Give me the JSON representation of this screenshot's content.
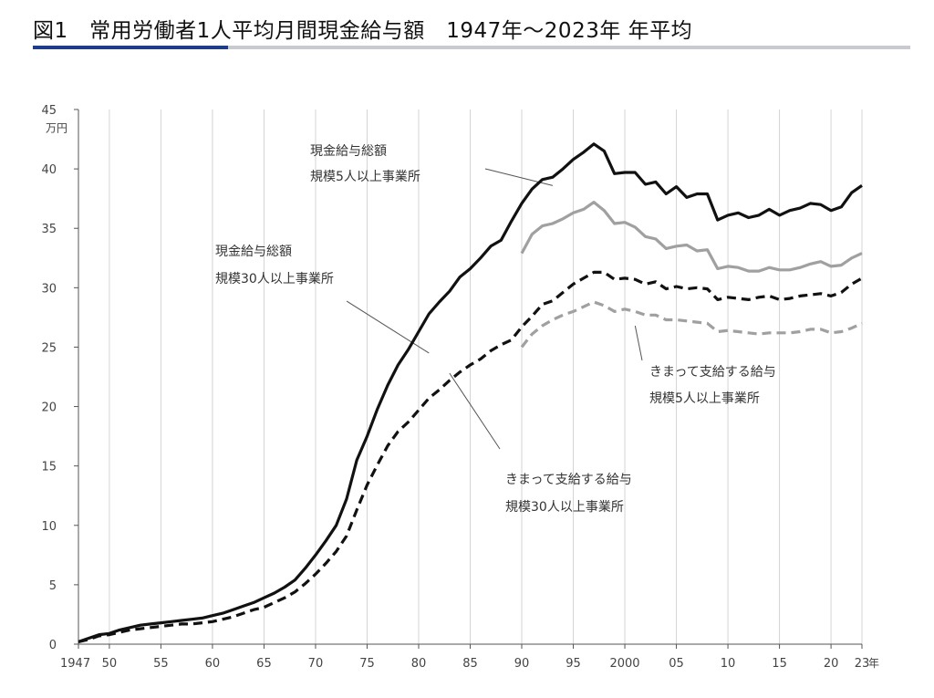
{
  "title": "図1　常用労働者1人平均月間現金給与額　1947年～2023年 年平均",
  "chart_data": {
    "type": "line",
    "y_unit": "万円",
    "x_unit": "年",
    "xlim": [
      1947,
      2023
    ],
    "ylim": [
      0,
      45
    ],
    "y_ticks": [
      0,
      5,
      10,
      15,
      20,
      25,
      30,
      35,
      40,
      45
    ],
    "x_ticks": [
      {
        "x": 1947,
        "label": "1947"
      },
      {
        "x": 1950,
        "label": "50"
      },
      {
        "x": 1955,
        "label": "55"
      },
      {
        "x": 1960,
        "label": "60"
      },
      {
        "x": 1965,
        "label": "65"
      },
      {
        "x": 1970,
        "label": "70"
      },
      {
        "x": 1975,
        "label": "75"
      },
      {
        "x": 1980,
        "label": "80"
      },
      {
        "x": 1985,
        "label": "85"
      },
      {
        "x": 1990,
        "label": "90"
      },
      {
        "x": 1995,
        "label": "95"
      },
      {
        "x": 2000,
        "label": "2000"
      },
      {
        "x": 2005,
        "label": "05"
      },
      {
        "x": 2010,
        "label": "10"
      },
      {
        "x": 2015,
        "label": "15"
      },
      {
        "x": 2020,
        "label": "20"
      },
      {
        "x": 2023,
        "label": "23"
      }
    ],
    "grid": "vertical",
    "series": [
      {
        "id": "total30",
        "color": "#111111",
        "dashed": false,
        "x": [
          1947,
          1948,
          1949,
          1950,
          1951,
          1952,
          1953,
          1954,
          1955,
          1956,
          1957,
          1958,
          1959,
          1960,
          1961,
          1962,
          1963,
          1964,
          1965,
          1966,
          1967,
          1968,
          1969,
          1970,
          1971,
          1972,
          1973,
          1974,
          1975,
          1976,
          1977,
          1978,
          1979,
          1980,
          1981,
          1982,
          1983,
          1984,
          1985,
          1986,
          1987,
          1988,
          1989,
          1990,
          1991,
          1992,
          1993,
          1994,
          1995,
          1996,
          1997,
          1998,
          1999,
          2000,
          2001,
          2002,
          2003,
          2004,
          2005,
          2006,
          2007,
          2008,
          2009,
          2010,
          2011,
          2012,
          2013,
          2014,
          2015,
          2016,
          2017,
          2018,
          2019,
          2020,
          2021,
          2022,
          2023
        ],
        "y": [
          0.2,
          0.5,
          0.8,
          0.9,
          1.2,
          1.4,
          1.6,
          1.7,
          1.8,
          1.9,
          2.0,
          2.1,
          2.2,
          2.4,
          2.6,
          2.9,
          3.2,
          3.5,
          3.9,
          4.3,
          4.8,
          5.4,
          6.4,
          7.5,
          8.7,
          10.0,
          12.2,
          15.5,
          17.5,
          19.8,
          21.8,
          23.5,
          24.8,
          26.3,
          27.8,
          28.8,
          29.7,
          30.9,
          31.6,
          32.5,
          33.5,
          34.0,
          35.6,
          37.1,
          38.3,
          39.1,
          39.3,
          40.0,
          40.8,
          41.4,
          42.1,
          41.5,
          39.6,
          39.7,
          39.7,
          38.7,
          38.9,
          37.9,
          38.5,
          37.6,
          37.9,
          37.9,
          35.7,
          36.1,
          36.3,
          35.9,
          36.1,
          36.6,
          36.1,
          36.5,
          36.7,
          37.1,
          37.0,
          36.5,
          36.8,
          38.0,
          38.6
        ]
      },
      {
        "id": "contract30",
        "color": "#111111",
        "dashed": true,
        "x": [
          1947,
          1948,
          1949,
          1950,
          1951,
          1952,
          1953,
          1954,
          1955,
          1956,
          1957,
          1958,
          1959,
          1960,
          1961,
          1962,
          1963,
          1964,
          1965,
          1966,
          1967,
          1968,
          1969,
          1970,
          1971,
          1972,
          1973,
          1974,
          1975,
          1976,
          1977,
          1978,
          1979,
          1980,
          1981,
          1982,
          1983,
          1984,
          1985,
          1986,
          1987,
          1988,
          1989,
          1990,
          1991,
          1992,
          1993,
          1994,
          1995,
          1996,
          1997,
          1998,
          1999,
          2000,
          2001,
          2002,
          2003,
          2004,
          2005,
          2006,
          2007,
          2008,
          2009,
          2010,
          2011,
          2012,
          2013,
          2014,
          2015,
          2016,
          2017,
          2018,
          2019,
          2020,
          2021,
          2022,
          2023
        ],
        "y": [
          0.2,
          0.4,
          0.7,
          0.8,
          1.0,
          1.2,
          1.3,
          1.4,
          1.5,
          1.6,
          1.7,
          1.7,
          1.8,
          1.9,
          2.1,
          2.3,
          2.6,
          2.9,
          3.1,
          3.5,
          3.9,
          4.4,
          5.1,
          5.9,
          6.8,
          7.8,
          9.1,
          11.3,
          13.4,
          15.1,
          16.7,
          17.9,
          18.7,
          19.7,
          20.7,
          21.4,
          22.2,
          22.9,
          23.5,
          24.0,
          24.7,
          25.2,
          25.6,
          26.7,
          27.6,
          28.6,
          28.9,
          29.6,
          30.3,
          30.8,
          31.3,
          31.3,
          30.7,
          30.8,
          30.7,
          30.3,
          30.5,
          29.9,
          30.1,
          29.9,
          30.0,
          29.9,
          29.0,
          29.2,
          29.1,
          29.0,
          29.2,
          29.3,
          29.0,
          29.1,
          29.3,
          29.4,
          29.5,
          29.3,
          29.6,
          30.3,
          30.8
        ]
      },
      {
        "id": "total5",
        "color": "#a0a0a0",
        "dashed": false,
        "x": [
          1990,
          1991,
          1992,
          1993,
          1994,
          1995,
          1996,
          1997,
          1998,
          1999,
          2000,
          2001,
          2002,
          2003,
          2004,
          2005,
          2006,
          2007,
          2008,
          2009,
          2010,
          2011,
          2012,
          2013,
          2014,
          2015,
          2016,
          2017,
          2018,
          2019,
          2020,
          2021,
          2022,
          2023
        ],
        "y": [
          32.9,
          34.5,
          35.2,
          35.4,
          35.8,
          36.3,
          36.6,
          37.2,
          36.5,
          35.4,
          35.5,
          35.1,
          34.3,
          34.1,
          33.3,
          33.5,
          33.6,
          33.1,
          33.2,
          31.6,
          31.8,
          31.7,
          31.4,
          31.4,
          31.7,
          31.5,
          31.5,
          31.7,
          32.0,
          32.2,
          31.8,
          31.9,
          32.5,
          32.9
        ]
      },
      {
        "id": "contract5",
        "color": "#a0a0a0",
        "dashed": true,
        "x": [
          1990,
          1991,
          1992,
          1993,
          1994,
          1995,
          1996,
          1997,
          1998,
          1999,
          2000,
          2001,
          2002,
          2003,
          2004,
          2005,
          2006,
          2007,
          2008,
          2009,
          2010,
          2011,
          2012,
          2013,
          2014,
          2015,
          2016,
          2017,
          2018,
          2019,
          2020,
          2021,
          2022,
          2023
        ],
        "y": [
          25.0,
          26.1,
          26.8,
          27.3,
          27.7,
          28.0,
          28.4,
          28.8,
          28.5,
          28.0,
          28.2,
          28.0,
          27.7,
          27.7,
          27.3,
          27.3,
          27.2,
          27.1,
          27.0,
          26.3,
          26.4,
          26.3,
          26.2,
          26.1,
          26.2,
          26.2,
          26.2,
          26.3,
          26.5,
          26.5,
          26.2,
          26.3,
          26.6,
          27.0
        ]
      }
    ],
    "annotations": [
      {
        "id": "ann-total5",
        "lines": [
          "現金給与総額",
          "規模5人以上事業所"
        ],
        "point_to": [
          1993,
          38.6
        ]
      },
      {
        "id": "ann-total30",
        "lines": [
          "現金給与総額",
          "規模30人以上事業所"
        ],
        "point_to": [
          1981,
          24.5
        ]
      },
      {
        "id": "ann-contract5",
        "lines": [
          "きまって支給する給与",
          "規模5人以上事業所"
        ],
        "point_to": [
          2001,
          26.8
        ]
      },
      {
        "id": "ann-contract30",
        "lines": [
          "きまって支給する給与",
          "規模30人以上事業所"
        ],
        "point_to": [
          1983,
          22.8
        ]
      }
    ]
  }
}
